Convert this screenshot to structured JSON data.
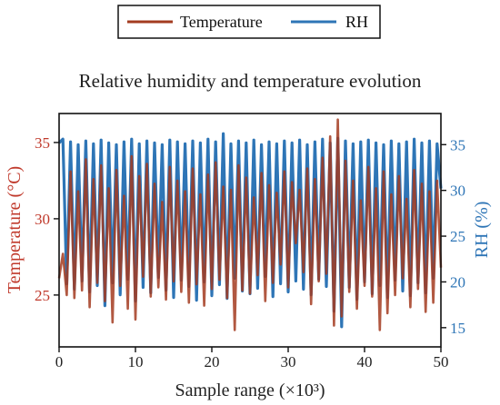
{
  "chart_data": {
    "type": "line",
    "title": "Relative humidity and temperature evolution",
    "xlabel": "Sample range (×10³)",
    "xlim": [
      0,
      50
    ],
    "x_ticks": [
      0,
      10,
      20,
      30,
      40,
      50
    ],
    "y_left": {
      "label": "Temperature (°C)",
      "ylim": [
        21.6,
        36.9
      ],
      "ticks": [
        25,
        30,
        35
      ],
      "color": "#c0392b"
    },
    "y_right": {
      "label": "RH (%)",
      "ylim": [
        12.9,
        38.4
      ],
      "ticks": [
        15,
        20,
        25,
        30,
        35
      ],
      "color": "#2e75b6"
    },
    "grid": false,
    "legend_position": "top-center-outside",
    "series": [
      {
        "name": "Temperature",
        "axis": "left",
        "color": "#a33b20",
        "x": [
          0,
          0.5,
          1,
          1.5,
          2,
          2.5,
          3,
          3.5,
          4,
          4.5,
          5,
          5.5,
          6,
          6.5,
          7,
          7.5,
          8,
          8.5,
          9,
          9.5,
          10,
          10.5,
          11,
          11.5,
          12,
          12.5,
          13,
          13.5,
          14,
          14.5,
          15,
          15.5,
          16,
          16.5,
          17,
          17.5,
          18,
          18.5,
          19,
          19.5,
          20,
          20.5,
          21,
          21.5,
          22,
          22.5,
          23,
          23.5,
          24,
          24.5,
          25,
          25.5,
          26,
          26.5,
          27,
          27.5,
          28,
          28.5,
          29,
          29.5,
          30,
          30.5,
          31,
          31.5,
          32,
          32.5,
          33,
          33.5,
          34,
          34.5,
          35,
          35.5,
          36,
          36.5,
          37,
          37.5,
          38,
          38.5,
          39,
          39.5,
          40,
          40.5,
          41,
          41.5,
          42,
          42.5,
          43,
          43.5,
          44,
          44.5,
          45,
          45.5,
          46,
          46.5,
          47,
          47.5,
          48,
          48.5,
          49,
          49.5,
          50
        ],
        "values": [
          26.1,
          27.7,
          25.0,
          33.1,
          24.8,
          31.8,
          25.3,
          33.9,
          24.2,
          32.6,
          25.8,
          33.5,
          24.6,
          32.0,
          23.2,
          33.2,
          25.6,
          31.5,
          24.1,
          34.1,
          23.4,
          32.8,
          26.2,
          33.6,
          24.9,
          32.3,
          25.5,
          31.1,
          24.7,
          33.4,
          25.9,
          32.5,
          25.2,
          31.8,
          24.5,
          33.3,
          25.7,
          31.6,
          24.3,
          32.9,
          25.4,
          33.7,
          26.0,
          32.1,
          24.8,
          31.9,
          22.7,
          33.5,
          25.3,
          32.7,
          25.1,
          31.4,
          26.3,
          33.0,
          24.6,
          32.2,
          25.8,
          31.7,
          27.0,
          33.1,
          25.5,
          32.4,
          28.4,
          31.9,
          26.5,
          33.3,
          24.4,
          32.6,
          25.9,
          34.0,
          26.4,
          35.4,
          23.0,
          36.5,
          23.6,
          33.8,
          25.2,
          32.5,
          24.1,
          31.2,
          25.6,
          33.4,
          24.9,
          32.0,
          22.7,
          33.1,
          23.8,
          31.6,
          25.0,
          32.8,
          26.1,
          31.3,
          24.2,
          33.2,
          25.4,
          32.3,
          23.9,
          31.8,
          24.5,
          32.5,
          26.8
        ]
      },
      {
        "name": "RH",
        "axis": "right",
        "color": "#2e75b6",
        "x": [
          0,
          0.5,
          1,
          1.5,
          2,
          2.5,
          3,
          3.5,
          4,
          4.5,
          5,
          5.5,
          6,
          6.5,
          7,
          7.5,
          8,
          8.5,
          9,
          9.5,
          10,
          10.5,
          11,
          11.5,
          12,
          12.5,
          13,
          13.5,
          14,
          14.5,
          15,
          15.5,
          16,
          16.5,
          17,
          17.5,
          18,
          18.5,
          19,
          19.5,
          20,
          20.5,
          21,
          21.5,
          22,
          22.5,
          23,
          23.5,
          24,
          24.5,
          25,
          25.5,
          26,
          26.5,
          27,
          27.5,
          28,
          28.5,
          29,
          29.5,
          30,
          30.5,
          31,
          31.5,
          32,
          32.5,
          33,
          33.5,
          34,
          34.5,
          35,
          35.5,
          36,
          36.5,
          37,
          37.5,
          38,
          38.5,
          39,
          39.5,
          40,
          40.5,
          41,
          41.5,
          42,
          42.5,
          43,
          43.5,
          44,
          44.5,
          45,
          45.5,
          46,
          46.5,
          47,
          47.5,
          48,
          48.5,
          49,
          49.5,
          50
        ],
        "values": [
          35.2,
          35.6,
          19.8,
          35.3,
          19.2,
          35.0,
          20.1,
          35.4,
          18.9,
          35.1,
          19.6,
          35.5,
          17.4,
          35.2,
          19.9,
          35.0,
          18.6,
          35.3,
          20.3,
          35.6,
          17.9,
          35.1,
          19.4,
          35.4,
          18.8,
          35.2,
          20.5,
          35.0,
          19.1,
          35.5,
          18.3,
          35.3,
          20.2,
          35.1,
          19.5,
          35.4,
          18.0,
          35.2,
          20.0,
          35.6,
          18.5,
          35.3,
          19.7,
          36.2,
          18.2,
          35.1,
          20.4,
          35.4,
          19.0,
          35.2,
          18.7,
          35.5,
          19.3,
          35.0,
          20.6,
          35.3,
          18.4,
          35.1,
          19.8,
          35.4,
          18.9,
          35.2,
          20.1,
          35.5,
          19.2,
          35.0,
          18.6,
          35.3,
          20.3,
          35.6,
          19.5,
          35.2,
          16.8,
          35.7,
          15.1,
          35.4,
          19.4,
          35.1,
          18.1,
          35.3,
          20.0,
          35.5,
          18.7,
          35.2,
          19.6,
          35.0,
          18.3,
          35.4,
          20.2,
          35.1,
          19.0,
          35.3,
          18.5,
          35.6,
          19.9,
          35.2,
          18.8,
          35.4,
          20.4,
          35.1,
          30.2
        ]
      }
    ]
  }
}
